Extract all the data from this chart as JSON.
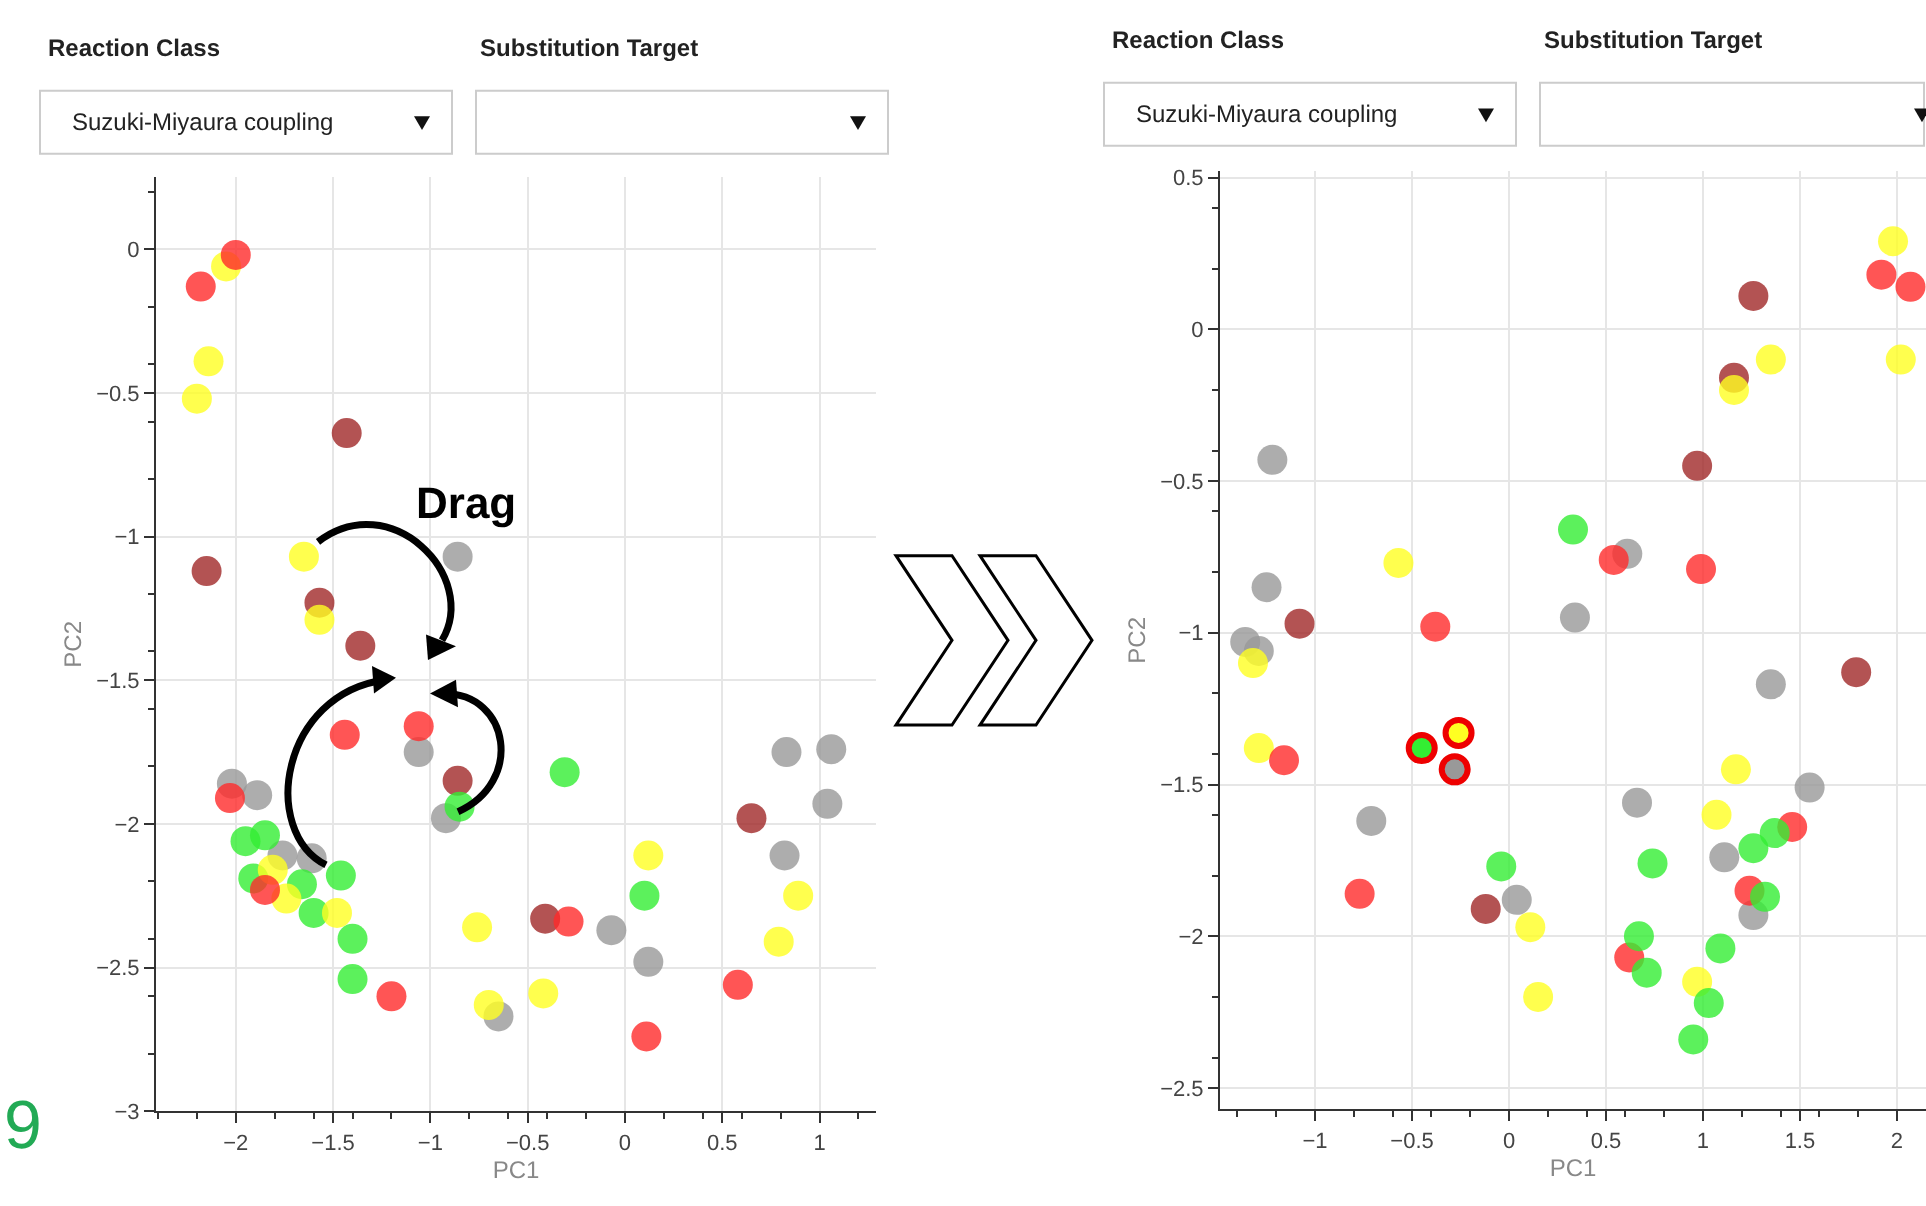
{
  "chart_data": [
    {
      "type": "scatter",
      "xlabel": "PC1",
      "ylabel": "PC2",
      "grid": true,
      "marker": "circle",
      "annotations": [
        "Reaction Class",
        "Substitution Target",
        "Suzuki-Miyaura coupling",
        "Drag",
        "9"
      ],
      "xlim": [
        -2.41,
        1.29
      ],
      "ylim": [
        -3.0,
        0.25
      ],
      "xticks": [
        {
          "value": -2,
          "label": "−2"
        },
        {
          "value": -1.5,
          "label": "−1.5"
        },
        {
          "value": -1,
          "label": "−1"
        },
        {
          "value": -0.5,
          "label": "−0.5"
        },
        0,
        0.5,
        1
      ],
      "yticks": [
        0,
        {
          "value": -0.5,
          "label": "−0.5"
        },
        {
          "value": -1,
          "label": "−1"
        },
        {
          "value": -1.5,
          "label": "−1.5"
        },
        {
          "value": -2,
          "label": "−2"
        },
        {
          "value": -2.5,
          "label": "−2.5"
        },
        {
          "value": -3,
          "label": "−3"
        }
      ],
      "series": [
        {
          "color": "#999999",
          "x": [
            -0.86,
            -1.06,
            -2.02,
            -1.89,
            -0.92,
            -1.76,
            -1.61,
            -0.07,
            -0.65,
            0.12,
            0.83,
            1.06,
            1.04,
            0.82
          ],
          "values": [
            -1.07,
            -1.75,
            -1.86,
            -1.9,
            -1.98,
            -2.11,
            -2.12,
            -2.37,
            -2.67,
            -2.48,
            -1.75,
            -1.74,
            -1.93,
            -2.11
          ]
        },
        {
          "color": "#a02828",
          "x": [
            -1.43,
            -2.15,
            -1.57,
            -1.36,
            -0.86,
            -0.41,
            0.65
          ],
          "values": [
            -0.64,
            -1.12,
            -1.23,
            -1.38,
            -1.85,
            -2.33,
            -1.98
          ]
        },
        {
          "color": "#33ee33",
          "x": [
            -0.31,
            -0.85,
            -1.95,
            -1.85,
            -1.91,
            -1.66,
            -1.6,
            -1.46,
            -1.4,
            -1.4,
            0.1
          ],
          "values": [
            -1.82,
            -1.94,
            -2.06,
            -2.04,
            -2.19,
            -2.21,
            -2.31,
            -2.18,
            -2.4,
            -2.54,
            -2.25
          ]
        },
        {
          "color": "#ffff22",
          "x": [
            -2.05,
            -2.14,
            -2.2,
            -1.65,
            -1.57,
            -1.81,
            -1.74,
            -1.48,
            -0.76,
            -0.7,
            -0.42,
            0.12,
            0.89,
            0.79
          ],
          "values": [
            -0.06,
            -0.39,
            -0.52,
            -1.07,
            -1.29,
            -2.16,
            -2.26,
            -2.31,
            -2.36,
            -2.63,
            -2.59,
            -2.11,
            -2.25,
            -2.41
          ]
        },
        {
          "color": "#ff2a2a",
          "x": [
            -2.0,
            -2.18,
            -1.44,
            -1.06,
            -2.03,
            -1.85,
            -1.2,
            -0.29,
            0.58,
            0.11
          ],
          "values": [
            -0.02,
            -0.13,
            -1.69,
            -1.66,
            -1.91,
            -2.23,
            -2.6,
            -2.34,
            -2.56,
            -2.74
          ]
        }
      ]
    },
    {
      "type": "scatter",
      "xlabel": "PC1",
      "ylabel": "PC2",
      "grid": true,
      "marker": "circle",
      "annotations": [
        "Reaction Class",
        "Substitution Target",
        "Suzuki-Miyaura coupling"
      ],
      "xlim": [
        -1.49,
        2.15
      ],
      "ylim": [
        -2.57,
        0.52
      ],
      "xticks": [
        {
          "value": -1,
          "label": "−1"
        },
        {
          "value": -0.5,
          "label": "−0.5"
        },
        0,
        0.5,
        1,
        1.5,
        2
      ],
      "yticks": [
        0.5,
        0,
        {
          "value": -0.5,
          "label": "−0.5"
        },
        {
          "value": -1,
          "label": "−1"
        },
        {
          "value": -1.5,
          "label": "−1.5"
        },
        {
          "value": -2,
          "label": "−2"
        },
        {
          "value": -2.5,
          "label": "−2.5"
        }
      ],
      "series": [
        {
          "color": "#999999",
          "x": [
            -1.22,
            -1.25,
            -1.36,
            -1.29,
            0.34,
            0.61,
            1.35,
            1.55,
            0.66,
            -0.71,
            0.04,
            1.11,
            1.26
          ],
          "values": [
            -0.43,
            -0.85,
            -1.03,
            -1.06,
            -0.95,
            -0.74,
            -1.17,
            -1.51,
            -1.56,
            -1.62,
            -1.88,
            -1.74,
            -1.93
          ]
        },
        {
          "color": "#a02828",
          "x": [
            1.26,
            1.16,
            0.97,
            -1.08,
            1.79,
            -0.12
          ],
          "values": [
            0.11,
            -0.16,
            -0.45,
            -0.97,
            -1.13,
            -1.91
          ]
        },
        {
          "color": "#ffff22",
          "x": [
            1.98,
            1.35,
            2.02,
            1.16,
            -0.57,
            -1.32,
            -1.29,
            1.17,
            1.07,
            0.11,
            0.15,
            0.97
          ],
          "values": [
            0.29,
            -0.1,
            -0.1,
            -0.2,
            -0.77,
            -1.1,
            -1.38,
            -1.45,
            -1.6,
            -1.97,
            -2.2,
            -2.15
          ]
        },
        {
          "color": "#ff2a2a",
          "x": [
            1.92,
            2.07,
            0.54,
            0.99,
            -0.38,
            -1.16,
            -0.77,
            1.46,
            1.24,
            0.62
          ],
          "values": [
            0.18,
            0.14,
            -0.76,
            -0.79,
            -0.98,
            -1.42,
            -1.86,
            -1.64,
            -1.85,
            -2.07
          ]
        },
        {
          "color": "#33ee33",
          "x": [
            0.33,
            -0.04,
            0.74,
            1.26,
            1.37,
            1.32,
            0.67,
            0.71,
            1.09,
            1.03,
            0.95
          ],
          "values": [
            -0.66,
            -1.77,
            -1.76,
            -1.71,
            -1.66,
            -1.87,
            -2.0,
            -2.12,
            -2.04,
            -2.22,
            -2.34
          ]
        },
        {
          "colors": [
            "#33ee33",
            "#ffff22",
            "#999999"
          ],
          "x": [
            -0.45,
            -0.26,
            -0.28
          ],
          "values": [
            -1.38,
            -1.33,
            -1.45
          ]
        }
      ]
    }
  ]
}
